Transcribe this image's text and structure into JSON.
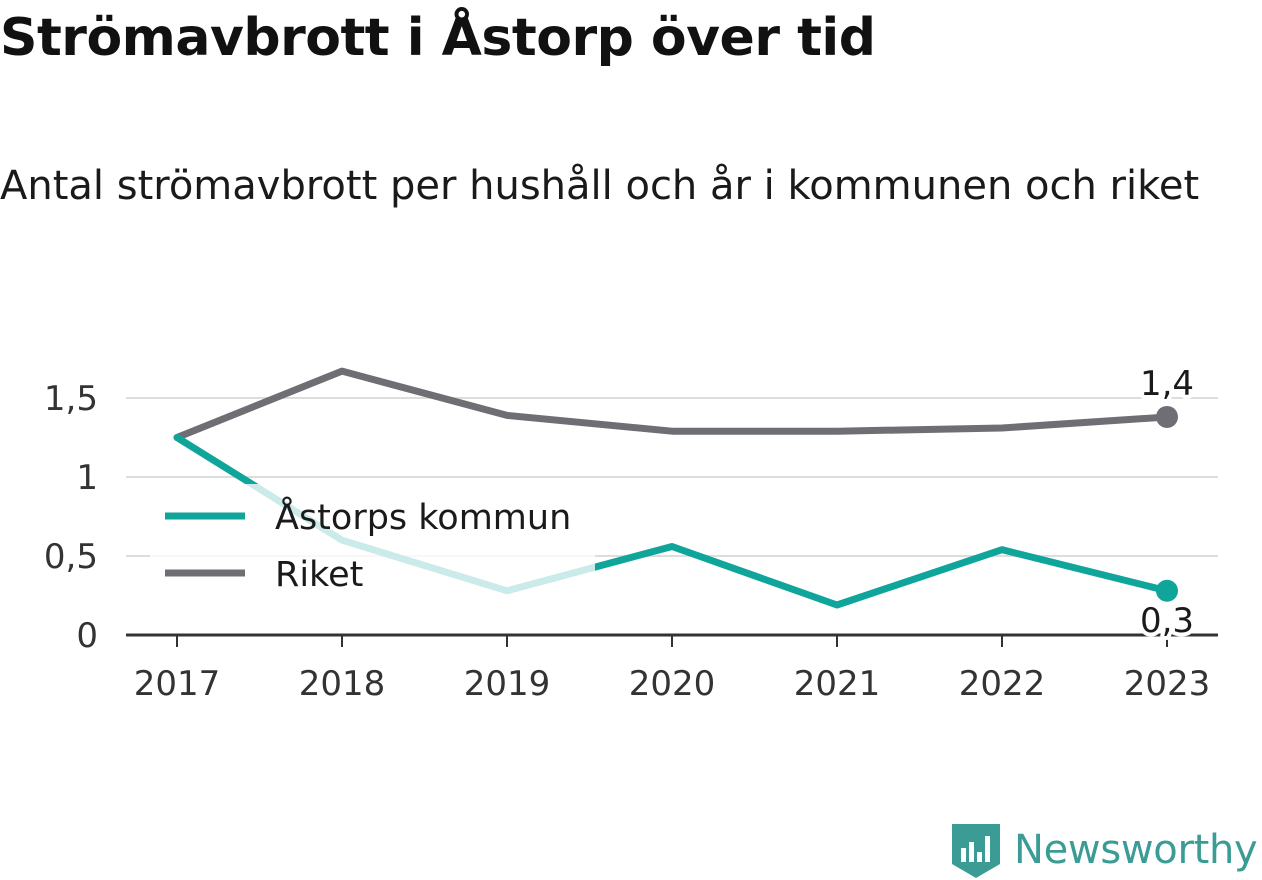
{
  "header": {
    "title": "Strömavbrott i Åstorp över tid",
    "subtitle": "Antal strömavbrott per hushåll och år i kommunen och riket"
  },
  "brand": {
    "name": "Newsworthy",
    "color": "#3b9c96"
  },
  "chart_data": {
    "type": "line",
    "categories": [
      "2017",
      "2018",
      "2019",
      "2020",
      "2021",
      "2022",
      "2023"
    ],
    "series": [
      {
        "name": "Åstorps kommun",
        "color": "#10a59b",
        "values": [
          1.25,
          0.6,
          0.28,
          0.56,
          0.19,
          0.54,
          0.28
        ],
        "end_label": "0,3"
      },
      {
        "name": "Riket",
        "color": "#6f6e75",
        "values": [
          1.25,
          1.67,
          1.39,
          1.29,
          1.29,
          1.31,
          1.38
        ],
        "end_label": "1,4"
      }
    ],
    "yticks": [
      0,
      0.5,
      1,
      1.5
    ],
    "ytick_labels": [
      "0",
      "0,5",
      "1",
      "1,5"
    ],
    "ylim": [
      0,
      1.7
    ],
    "grid": true,
    "legend_position": "left"
  }
}
